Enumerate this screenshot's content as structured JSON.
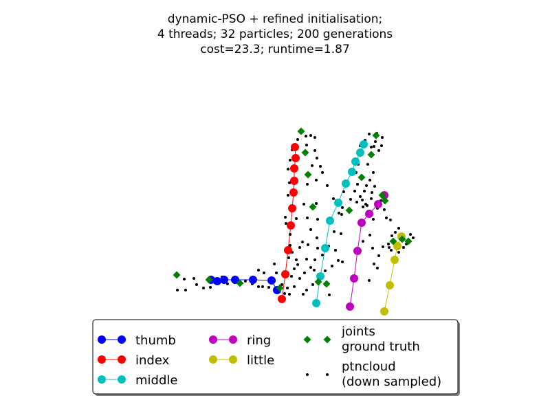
{
  "title_lines": [
    "dynamic-PSO + refined initialisation;",
    "4 threads; 32 particles; 200 generations",
    "cost=23.3; runtime=1.87"
  ],
  "chart_data": {
    "type": "scatter",
    "title": "dynamic-PSO + refined initialisation; 4 threads; 32 particles; 200 generations; cost=23.3; runtime=1.87",
    "axes_visible": false,
    "legend_position": "bottom",
    "series": [
      {
        "name": "thumb",
        "style": "line-marker",
        "color": "#0000ff",
        "points": [
          [
            307,
            407
          ],
          [
            316,
            409
          ],
          [
            326,
            407
          ],
          [
            342,
            407
          ],
          [
            368,
            407
          ],
          [
            395,
            408
          ],
          [
            403,
            422
          ]
        ]
      },
      {
        "name": "index",
        "style": "line-marker",
        "color": "#ff0000",
        "points": [
          [
            429,
            214
          ],
          [
            430,
            230
          ],
          [
            428,
            245
          ],
          [
            428,
            263
          ],
          [
            427,
            280
          ],
          [
            425,
            303
          ],
          [
            423,
            328
          ],
          [
            419,
            364
          ],
          [
            415,
            399
          ],
          [
            410,
            435
          ]
        ]
      },
      {
        "name": "middle",
        "style": "line-marker",
        "color": "#00bfbf",
        "points": [
          [
            529,
            210
          ],
          [
            524,
            222
          ],
          [
            517,
            235
          ],
          [
            512,
            250
          ],
          [
            503,
            267
          ],
          [
            492,
            295
          ],
          [
            480,
            321
          ],
          [
            473,
            361
          ],
          [
            466,
            402
          ],
          [
            460,
            441
          ]
        ]
      },
      {
        "name": "ring",
        "style": "line-marker",
        "color": "#bf00bf",
        "points": [
          [
            559,
            284
          ],
          [
            550,
            297
          ],
          [
            537,
            311
          ],
          [
            526,
            324
          ],
          [
            520,
            365
          ],
          [
            515,
            405
          ],
          [
            509,
            446
          ]
        ]
      },
      {
        "name": "little",
        "style": "line-marker",
        "color": "#bfbf00",
        "points": [
          [
            584,
            344
          ],
          [
            578,
            358
          ],
          [
            574,
            378
          ],
          [
            567,
            415
          ],
          [
            559,
            453
          ]
        ]
      },
      {
        "name": "joints\nground truth",
        "style": "marker",
        "color": "#008000",
        "points": [
          [
            438,
            191
          ],
          [
            444,
            222
          ],
          [
            448,
            254
          ],
          [
            455,
            301
          ],
          [
            463,
            410
          ],
          [
            475,
            413
          ],
          [
            407,
            419
          ],
          [
            349,
            412
          ],
          [
            304,
            407
          ],
          [
            257,
            400
          ],
          [
            547,
            197
          ],
          [
            540,
            225
          ],
          [
            526,
            258
          ],
          [
            508,
            306
          ],
          [
            560,
            292
          ],
          [
            556,
            284
          ],
          [
            572,
            351
          ],
          [
            585,
            348
          ],
          [
            594,
            351
          ]
        ]
      },
      {
        "name": "ptncloud\n(down sampled)",
        "style": "dot",
        "color": "#000000",
        "points": [
          [
            445,
            198
          ],
          [
            452,
            197
          ],
          [
            458,
            200
          ],
          [
            446,
            211
          ],
          [
            458,
            219
          ],
          [
            461,
            230
          ],
          [
            454,
            241
          ],
          [
            466,
            242
          ],
          [
            469,
            251
          ],
          [
            460,
            262
          ],
          [
            447,
            268
          ],
          [
            476,
            270
          ],
          [
            442,
            297
          ],
          [
            460,
            296
          ],
          [
            447,
            317
          ],
          [
            462,
            319
          ],
          [
            452,
            334
          ],
          [
            431,
            318
          ],
          [
            440,
            352
          ],
          [
            448,
            356
          ],
          [
            436,
            360
          ],
          [
            461,
            346
          ],
          [
            462,
            361
          ],
          [
            446,
            377
          ],
          [
            458,
            378
          ],
          [
            431,
            378
          ],
          [
            428,
            391
          ],
          [
            452,
            389
          ],
          [
            443,
            397
          ],
          [
            436,
            405
          ],
          [
            446,
            422
          ],
          [
            428,
            417
          ],
          [
            421,
            428
          ],
          [
            441,
            428
          ],
          [
            469,
            371
          ],
          [
            478,
            358
          ],
          [
            488,
            364
          ],
          [
            492,
            379
          ],
          [
            483,
            387
          ],
          [
            473,
            394
          ],
          [
            457,
            393
          ],
          [
            455,
            414
          ],
          [
            473,
            414
          ],
          [
            479,
            429
          ],
          [
            498,
            381
          ],
          [
            496,
            340
          ],
          [
            486,
            337
          ],
          [
            497,
            312
          ],
          [
            519,
            294
          ],
          [
            510,
            290
          ],
          [
            516,
            278
          ],
          [
            520,
            268
          ],
          [
            500,
            279
          ],
          [
            533,
            270
          ],
          [
            538,
            262
          ],
          [
            545,
            271
          ],
          [
            530,
            278
          ],
          [
            543,
            251
          ],
          [
            535,
            239
          ],
          [
            551,
            219
          ],
          [
            540,
            214
          ],
          [
            546,
            206
          ],
          [
            556,
            200
          ],
          [
            548,
            194
          ],
          [
            537,
            195
          ],
          [
            531,
            204
          ],
          [
            524,
            212
          ],
          [
            521,
            239
          ],
          [
            518,
            251
          ],
          [
            524,
            286
          ],
          [
            528,
            301
          ],
          [
            540,
            289
          ],
          [
            554,
            292
          ],
          [
            543,
            319
          ],
          [
            538,
            342
          ],
          [
            528,
            351
          ],
          [
            542,
            361
          ],
          [
            544,
            384
          ],
          [
            551,
            372
          ],
          [
            557,
            359
          ],
          [
            549,
            390
          ],
          [
            537,
            408
          ],
          [
            575,
            338
          ],
          [
            587,
            346
          ],
          [
            597,
            341
          ],
          [
            601,
            346
          ],
          [
            570,
            343
          ],
          [
            565,
            355
          ],
          [
            566,
            360
          ],
          [
            591,
            355
          ],
          [
            587,
            360
          ],
          [
            580,
            367
          ],
          [
            580,
            332
          ],
          [
            569,
            364
          ],
          [
            282,
            405
          ],
          [
            286,
            414
          ],
          [
            268,
            406
          ],
          [
            258,
            422
          ],
          [
            270,
            422
          ],
          [
            296,
            419
          ],
          [
            306,
            418
          ],
          [
            317,
            412
          ],
          [
            323,
            403
          ],
          [
            331,
            413
          ],
          [
            341,
            411
          ],
          [
            357,
            409
          ],
          [
            367,
            413
          ],
          [
            376,
            417
          ],
          [
            382,
            417
          ],
          [
            391,
            418
          ],
          [
            376,
            393
          ],
          [
            384,
            397
          ],
          [
            399,
            384
          ],
          [
            402,
            397
          ],
          [
            410,
            414
          ],
          [
            418,
            419
          ],
          [
            414,
            427
          ],
          [
            424,
            402
          ],
          [
            433,
            385
          ],
          [
            420,
            375
          ],
          [
            425,
            367
          ],
          [
            422,
            357
          ],
          [
            422,
            341
          ],
          [
            416,
            325
          ],
          [
            415,
            316
          ],
          [
            423,
            301
          ],
          [
            419,
            284
          ],
          [
            421,
            266
          ],
          [
            419,
            246
          ],
          [
            422,
            233
          ],
          [
            425,
            218
          ],
          [
            433,
            203
          ],
          [
            555,
            212
          ],
          [
            544,
            213
          ],
          [
            559,
            305
          ],
          [
            568,
            320
          ],
          [
            562,
            317
          ],
          [
            549,
            303
          ],
          [
            541,
            280
          ],
          [
            534,
            299
          ],
          [
            532,
            297
          ],
          [
            527,
            291
          ],
          [
            493,
            310
          ],
          [
            498,
            302
          ],
          [
            489,
            292
          ],
          [
            485,
            289
          ]
        ]
      }
    ]
  }
}
